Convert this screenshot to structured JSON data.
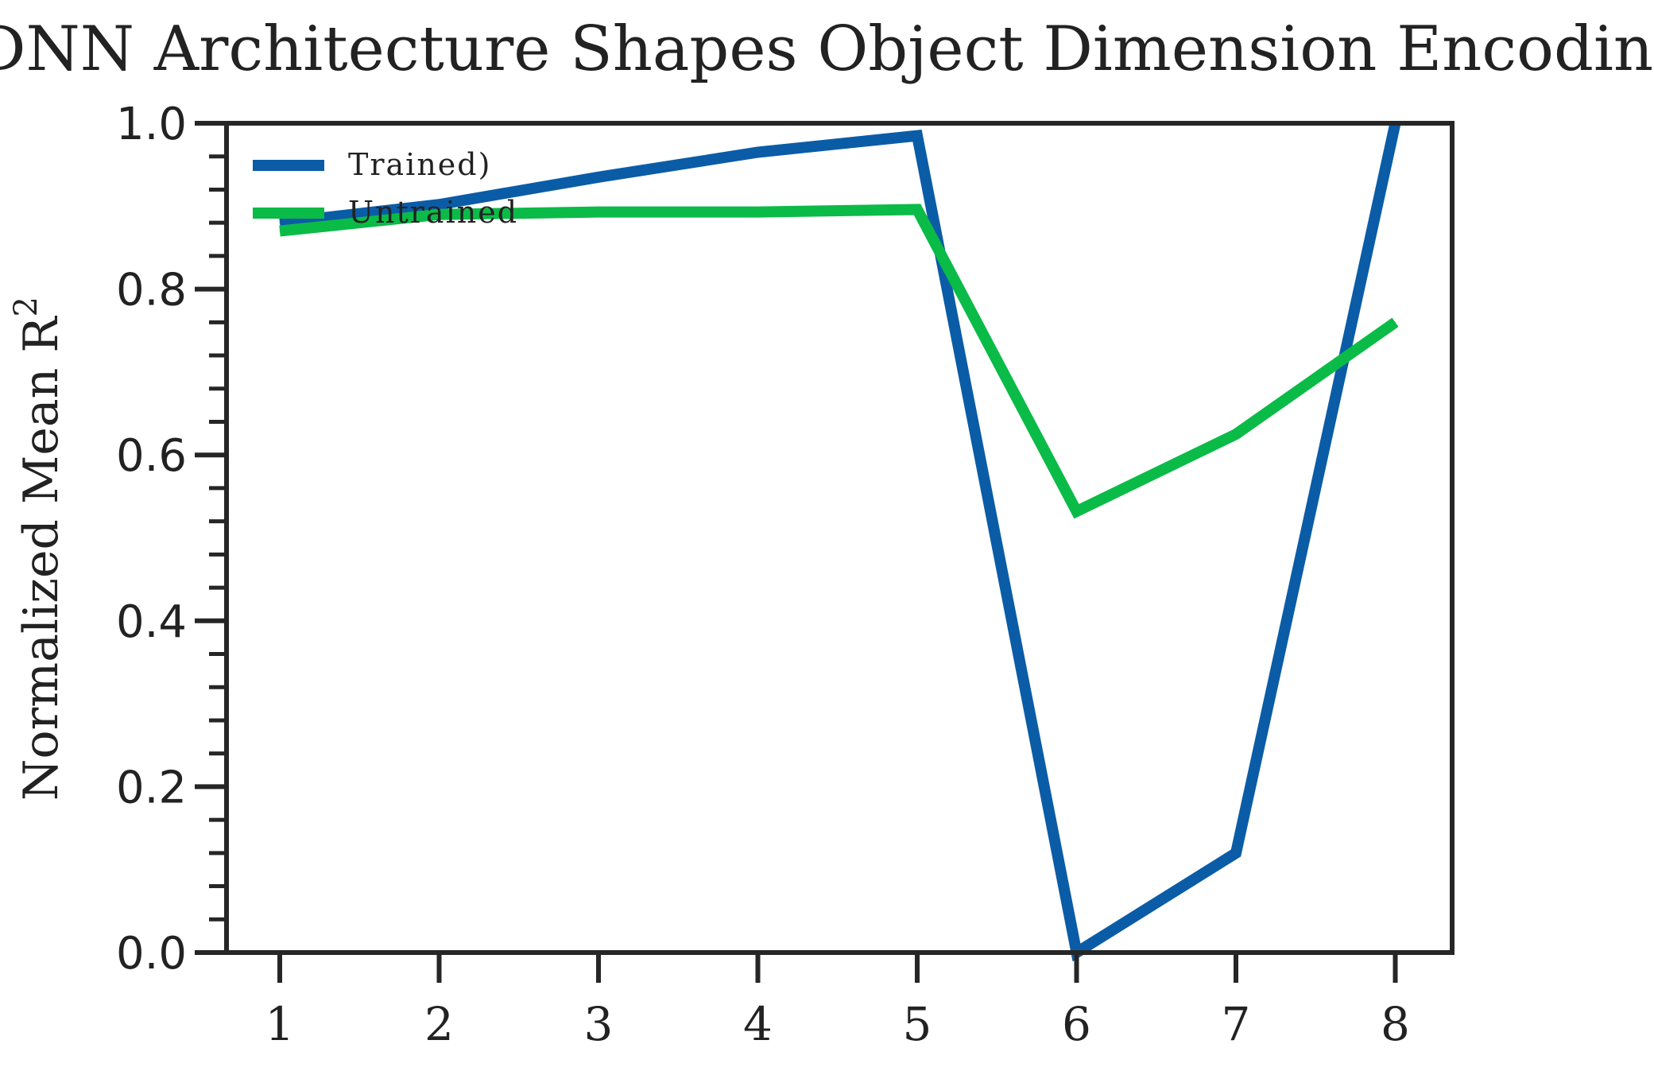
{
  "chart_data": {
    "type": "line",
    "title": "DNN Architecture Shapes Object Dimension Encoding",
    "ylabel": "Normalized Mean R",
    "ylabel_superscript": "2",
    "xlabel": "",
    "x": [
      1,
      2,
      3,
      4,
      5,
      6,
      7,
      8
    ],
    "x_tick_labels": [
      "1",
      "2",
      "3",
      "4",
      "5",
      "6",
      "7",
      "8"
    ],
    "y_tick_labels": [
      "0.0",
      "0.2",
      "0.4",
      "0.6",
      "0.8",
      "1.0"
    ],
    "ylim": [
      0,
      1
    ],
    "grid": false,
    "legend_position": "top-left",
    "series": [
      {
        "name": "Trained)",
        "color": "#0b5ca6",
        "values": [
          0.88,
          0.902,
          0.935,
          0.965,
          0.985,
          0.0,
          0.12,
          1.0
        ]
      },
      {
        "name": "Untrained",
        "color": "#0bbb48",
        "values": [
          0.87,
          0.89,
          0.893,
          0.893,
          0.896,
          0.532,
          0.625,
          0.76
        ]
      }
    ]
  }
}
